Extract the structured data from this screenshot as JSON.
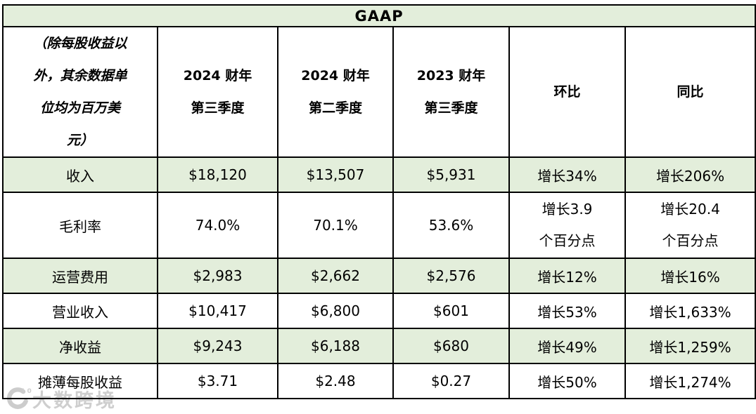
{
  "title": "GAAP",
  "colors": {
    "highlight_row_bg": "#e3eedb",
    "border": "#000000",
    "watermark_gray": "#c6c6c6",
    "cell_bg": "#ffffff"
  },
  "header": {
    "unit_note_lines": [
      "（除每股收益以",
      "外，其余数据单",
      "位均为百万美",
      "元）"
    ],
    "columns": [
      [
        "2024 财年",
        "第三季度"
      ],
      [
        "2024 财年",
        "第二季度"
      ],
      [
        "2023 财年",
        "第三季度"
      ],
      [
        "环比"
      ],
      [
        "同比"
      ]
    ]
  },
  "rows": [
    {
      "label": "收入",
      "values": [
        "$18,120",
        "$13,507",
        "$5,931",
        "增长34%",
        "增长206%"
      ],
      "highlight": true,
      "tall": false
    },
    {
      "label": "毛利率",
      "values": [
        "74.0%",
        "70.1%",
        "53.6%",
        [
          "增长3.9",
          "个百分点"
        ],
        [
          "增长20.4",
          "个百分点"
        ]
      ],
      "highlight": false,
      "tall": true
    },
    {
      "label": "运营费用",
      "values": [
        "$2,983",
        "$2,662",
        "$2,576",
        "增长12%",
        "增长16%"
      ],
      "highlight": true,
      "tall": false
    },
    {
      "label": "营业收入",
      "values": [
        "$10,417",
        "$6,800",
        "$601",
        "增长53%",
        "增长1,633%"
      ],
      "highlight": false,
      "tall": false
    },
    {
      "label": "净收益",
      "values": [
        "$9,243",
        "$6,188",
        "$680",
        "增长49%",
        "增长1,259%"
      ],
      "highlight": true,
      "tall": false
    },
    {
      "label": "摊薄每股收益",
      "values": [
        "$3.71",
        "$2.48",
        "$0.27",
        "增长50%",
        "增长1,274%"
      ],
      "highlight": false,
      "tall": false
    }
  ],
  "watermark": {
    "logo": "crescent-100-logo",
    "text": "大数跨境"
  },
  "chart_data": {
    "type": "table",
    "title": "GAAP",
    "unit_note": "（除每股收益以外，其余数据单位均为百万美元）",
    "columns": [
      "（除每股收益以外，其余数据单位均为百万美元）",
      "2024 财年第三季度",
      "2024 财年第二季度",
      "2023 财年第三季度",
      "环比",
      "同比"
    ],
    "rows": [
      [
        "收入",
        "$18,120",
        "$13,507",
        "$5,931",
        "增长34%",
        "增长206%"
      ],
      [
        "毛利率",
        "74.0%",
        "70.1%",
        "53.6%",
        "增长3.9个百分点",
        "增长20.4个百分点"
      ],
      [
        "运营费用",
        "$2,983",
        "$2,662",
        "$2,576",
        "增长12%",
        "增长16%"
      ],
      [
        "营业收入",
        "$10,417",
        "$6,800",
        "$601",
        "增长53%",
        "增长1,633%"
      ],
      [
        "净收益",
        "$9,243",
        "$6,188",
        "$680",
        "增长49%",
        "增长1,259%"
      ],
      [
        "摊薄每股收益",
        "$3.71",
        "$2.48",
        "$0.27",
        "增长50%",
        "增长1,274%"
      ]
    ],
    "layout_hints": {
      "striped_rows": "alternating light-green (#e3eedb) and white starting with green on first data row",
      "header_background": "white, bold; title row green",
      "grid": "2px solid black borders on all cells"
    }
  }
}
